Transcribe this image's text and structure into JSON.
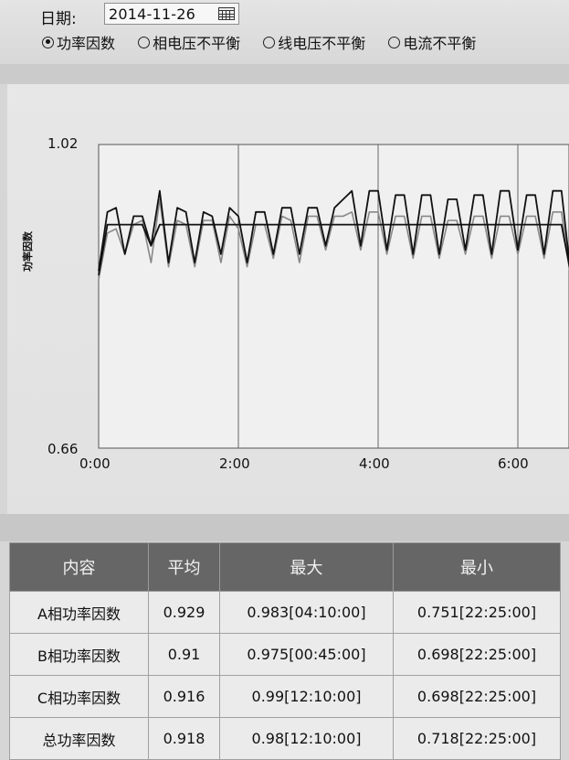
{
  "filter": {
    "date_label": "日期:",
    "date_value": "2014-11-26",
    "radio_options": [
      {
        "label": "功率因数",
        "selected": true
      },
      {
        "label": "相电压不平衡",
        "selected": false
      },
      {
        "label": "线电压不平衡",
        "selected": false
      },
      {
        "label": "电流不平衡",
        "selected": false
      }
    ]
  },
  "chart_data": {
    "type": "line",
    "ylabel": "功率因数",
    "ylim": [
      0.66,
      1.02
    ],
    "y_ticks": [
      "1.02",
      "0.66"
    ],
    "x_ticks": [
      "0:00",
      "2:00",
      "4:00",
      "6:00"
    ],
    "x_unit": "hours",
    "grid": true,
    "series": [
      {
        "color": "#111111",
        "x": [
          0,
          0.125,
          0.25,
          0.375,
          0.5,
          0.625,
          0.75,
          0.875,
          1.0,
          1.125,
          1.25,
          1.375,
          1.5,
          1.625,
          1.75,
          1.875,
          2.0,
          2.125,
          2.25,
          2.375,
          2.5,
          2.625,
          2.75,
          2.875,
          3.0,
          3.125,
          3.25,
          3.375,
          3.5,
          3.625,
          3.75,
          3.875,
          4.0,
          4.125,
          4.25,
          4.375,
          4.5,
          4.625,
          4.75,
          4.875,
          5.0,
          5.125,
          5.25,
          5.375,
          5.5,
          5.625,
          5.75,
          5.875,
          6.0,
          6.125,
          6.25,
          6.375,
          6.5,
          6.625,
          6.75
        ],
        "values": [
          0.87,
          0.94,
          0.945,
          0.89,
          0.935,
          0.935,
          0.9,
          0.965,
          0.88,
          0.945,
          0.94,
          0.88,
          0.94,
          0.935,
          0.89,
          0.945,
          0.935,
          0.88,
          0.94,
          0.94,
          0.89,
          0.945,
          0.945,
          0.89,
          0.945,
          0.945,
          0.9,
          0.945,
          0.955,
          0.965,
          0.9,
          0.965,
          0.965,
          0.895,
          0.96,
          0.96,
          0.89,
          0.96,
          0.96,
          0.89,
          0.955,
          0.955,
          0.895,
          0.96,
          0.96,
          0.89,
          0.965,
          0.965,
          0.895,
          0.96,
          0.96,
          0.89,
          0.965,
          0.965,
          0.87
        ]
      },
      {
        "color": "#111111",
        "x": [
          0,
          0.125,
          0.25,
          0.375,
          0.5,
          0.625,
          0.75,
          0.875,
          1.0,
          1.125,
          1.25,
          1.375,
          1.5,
          1.625,
          1.75,
          1.875,
          2.0,
          2.125,
          2.25,
          2.375,
          2.5,
          2.625,
          2.75,
          2.875,
          3.0,
          3.125,
          3.25,
          3.375,
          3.5,
          3.625,
          3.75,
          3.875,
          4.0,
          4.125,
          4.25,
          4.375,
          4.5,
          4.625,
          4.75,
          4.875,
          5.0,
          5.125,
          5.25,
          5.375,
          5.5,
          5.625,
          5.75,
          5.875,
          6.0,
          6.125,
          6.25,
          6.375,
          6.5,
          6.625,
          6.75
        ],
        "values": [
          0.865,
          0.925,
          0.925,
          0.925,
          0.925,
          0.925,
          0.9,
          0.925,
          0.925,
          0.925,
          0.925,
          0.925,
          0.925,
          0.925,
          0.925,
          0.925,
          0.925,
          0.925,
          0.925,
          0.925,
          0.925,
          0.925,
          0.925,
          0.925,
          0.925,
          0.925,
          0.925,
          0.925,
          0.925,
          0.925,
          0.925,
          0.925,
          0.925,
          0.925,
          0.925,
          0.925,
          0.925,
          0.925,
          0.925,
          0.925,
          0.925,
          0.925,
          0.925,
          0.925,
          0.925,
          0.925,
          0.925,
          0.925,
          0.925,
          0.925,
          0.925,
          0.925,
          0.925,
          0.925,
          0.87
        ]
      },
      {
        "color": "#888888",
        "x": [
          0,
          0.125,
          0.25,
          0.375,
          0.5,
          0.625,
          0.75,
          0.875,
          1.0,
          1.125,
          1.25,
          1.375,
          1.5,
          1.625,
          1.75,
          1.875,
          2.0,
          2.125,
          2.25,
          2.375,
          2.5,
          2.625,
          2.75,
          2.875,
          3.0,
          3.125,
          3.25,
          3.375,
          3.5,
          3.625,
          3.75,
          3.875,
          4.0,
          4.125,
          4.25,
          4.375,
          4.5,
          4.625,
          4.75,
          4.875,
          5.0,
          5.125,
          5.25,
          5.375,
          5.5,
          5.625,
          5.75,
          5.875,
          6.0,
          6.125,
          6.25,
          6.375,
          6.5,
          6.625,
          6.75
        ],
        "values": [
          0.86,
          0.915,
          0.92,
          0.89,
          0.925,
          0.93,
          0.88,
          0.955,
          0.875,
          0.93,
          0.925,
          0.875,
          0.93,
          0.93,
          0.88,
          0.935,
          0.92,
          0.875,
          0.925,
          0.925,
          0.885,
          0.935,
          0.93,
          0.88,
          0.935,
          0.935,
          0.895,
          0.935,
          0.935,
          0.94,
          0.895,
          0.94,
          0.94,
          0.89,
          0.935,
          0.935,
          0.885,
          0.935,
          0.935,
          0.885,
          0.93,
          0.93,
          0.89,
          0.935,
          0.935,
          0.885,
          0.935,
          0.935,
          0.89,
          0.935,
          0.935,
          0.885,
          0.94,
          0.94,
          0.865
        ]
      }
    ]
  },
  "table": {
    "headers": [
      "内容",
      "平均",
      "最大",
      "最小"
    ],
    "rows": [
      [
        "A相功率因数",
        "0.929",
        "0.983[04:10:00]",
        "0.751[22:25:00]"
      ],
      [
        "B相功率因数",
        "0.91",
        "0.975[00:45:00]",
        "0.698[22:25:00]"
      ],
      [
        "C相功率因数",
        "0.916",
        "0.99[12:10:00]",
        "0.698[22:25:00]"
      ],
      [
        "总功率因数",
        "0.918",
        "0.98[12:10:00]",
        "0.718[22:25:00]"
      ]
    ]
  }
}
